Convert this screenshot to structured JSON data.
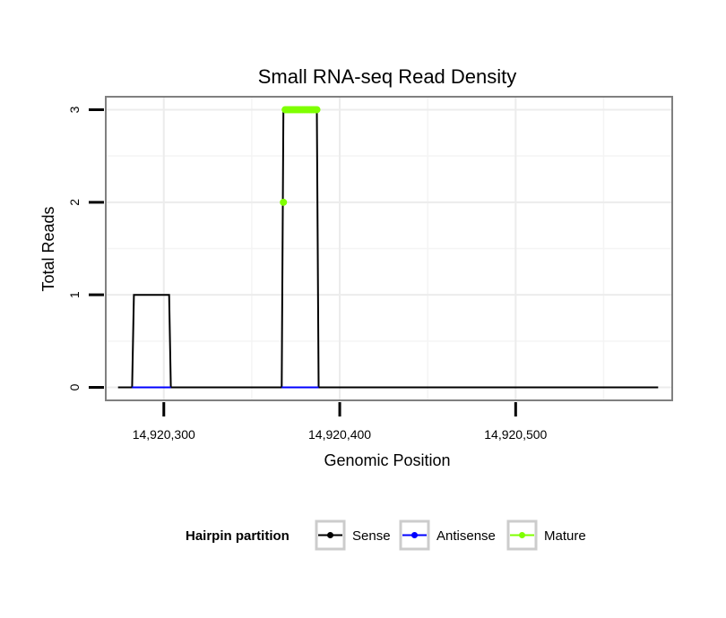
{
  "chart_data": {
    "type": "line",
    "title": "Small RNA-seq Read Density",
    "xlabel": "Genomic Position",
    "ylabel": "Total Reads",
    "xlim": [
      14920267,
      14920589
    ],
    "ylim": [
      -0.14,
      3.14
    ],
    "x_ticks": [
      {
        "value": 14920300,
        "label": "14,920,300"
      },
      {
        "value": 14920400,
        "label": "14,920,400"
      },
      {
        "value": 14920500,
        "label": "14,920,500"
      }
    ],
    "y_ticks": [
      {
        "value": 0,
        "label": "0"
      },
      {
        "value": 1,
        "label": "1"
      },
      {
        "value": 2,
        "label": "2"
      },
      {
        "value": 3,
        "label": "3"
      }
    ],
    "grid": true,
    "legend": {
      "title": "Hairpin partition",
      "position": "bottom",
      "items": [
        {
          "label": "Sense",
          "color": "#000000"
        },
        {
          "label": "Antisense",
          "color": "#0000ff"
        },
        {
          "label": "Mature",
          "color": "#7fff00"
        }
      ]
    },
    "series": [
      {
        "name": "Sense",
        "color": "#000000",
        "x": [
          14920274,
          14920282,
          14920283,
          14920303,
          14920304,
          14920367,
          14920368,
          14920387,
          14920388,
          14920581
        ],
        "y": [
          0,
          0,
          1,
          1,
          0,
          0,
          3,
          3,
          0,
          0
        ]
      },
      {
        "name": "Antisense",
        "color": "#0000ff",
        "x": [
          14920282,
          14920304,
          14920367,
          14920388
        ],
        "y": [
          0,
          0,
          0,
          0
        ],
        "segments": [
          [
            0,
            1
          ],
          [
            2,
            3
          ]
        ]
      },
      {
        "name": "Mature",
        "color": "#7fff00",
        "points": [
          {
            "x": 14920368,
            "y": 2
          },
          {
            "x": 14920369,
            "y": 3
          },
          {
            "x": 14920370,
            "y": 3
          },
          {
            "x": 14920371,
            "y": 3
          },
          {
            "x": 14920372,
            "y": 3
          },
          {
            "x": 14920373,
            "y": 3
          },
          {
            "x": 14920374,
            "y": 3
          },
          {
            "x": 14920375,
            "y": 3
          },
          {
            "x": 14920376,
            "y": 3
          },
          {
            "x": 14920377,
            "y": 3
          },
          {
            "x": 14920378,
            "y": 3
          },
          {
            "x": 14920379,
            "y": 3
          },
          {
            "x": 14920380,
            "y": 3
          },
          {
            "x": 14920381,
            "y": 3
          },
          {
            "x": 14920382,
            "y": 3
          },
          {
            "x": 14920383,
            "y": 3
          },
          {
            "x": 14920384,
            "y": 3
          },
          {
            "x": 14920385,
            "y": 3
          },
          {
            "x": 14920386,
            "y": 3
          },
          {
            "x": 14920387,
            "y": 3
          }
        ]
      }
    ]
  }
}
